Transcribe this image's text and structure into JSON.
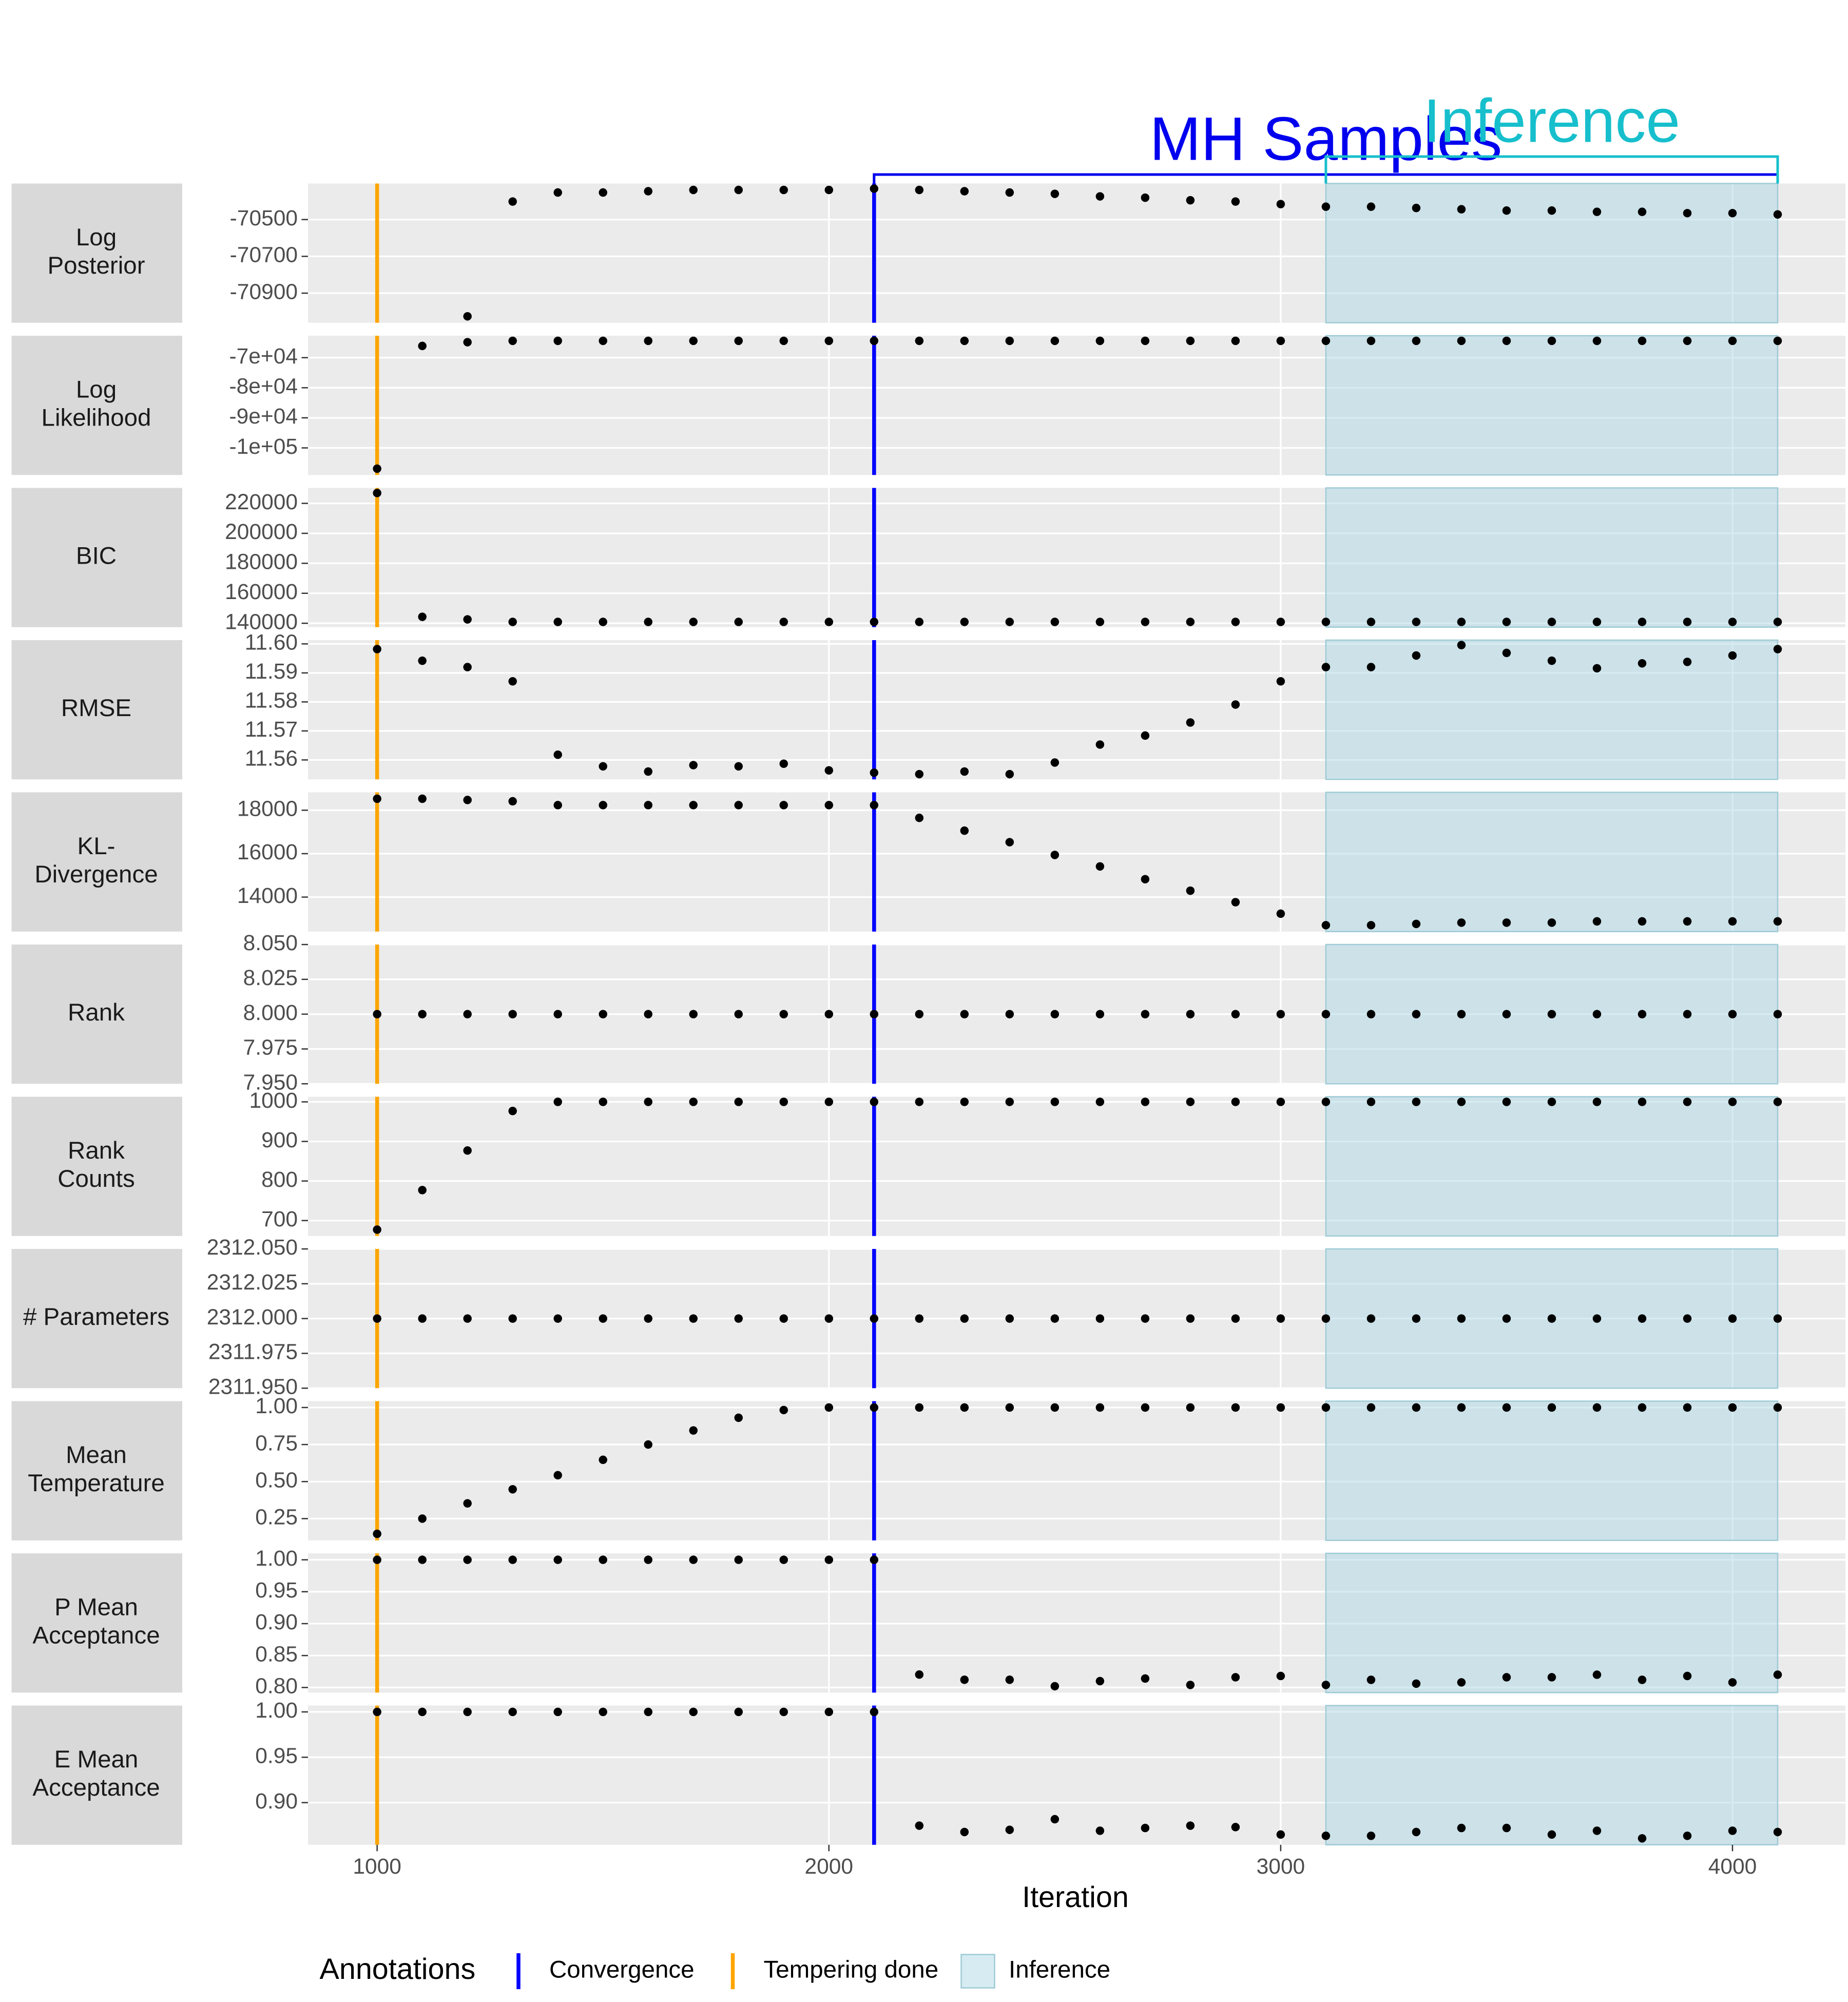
{
  "chart_data": {
    "type": "scatter",
    "xlabel": "Iteration",
    "xlim": [
      847,
      4250
    ],
    "xticks": [
      1000,
      2000,
      3000,
      4000
    ],
    "x": [
      1000,
      1100,
      1200,
      1300,
      1400,
      1500,
      1600,
      1700,
      1800,
      1900,
      2000,
      2100,
      2200,
      2300,
      2400,
      2500,
      2600,
      2700,
      2800,
      2900,
      3000,
      3100,
      3200,
      3300,
      3400,
      3500,
      3600,
      3700,
      3800,
      3900,
      4000,
      4100
    ],
    "panels": [
      {
        "strip": [
          "Log",
          "Posterior"
        ],
        "ylim": [
          -71061,
          -70304
        ],
        "yticks": [
          -70500,
          -70700,
          -70900
        ],
        "values": [
          null,
          null,
          -71026,
          -70402,
          -70353,
          -70353,
          -70346,
          -70339,
          -70339,
          -70339,
          -70339,
          -70332,
          -70339,
          -70346,
          -70353,
          -70360,
          -70374,
          -70381,
          -70395,
          -70402,
          -70416,
          -70430,
          -70430,
          -70437,
          -70444,
          -70451,
          -70451,
          -70458,
          -70458,
          -70465,
          -70465,
          -70472
        ]
      },
      {
        "strip": [
          "Log",
          "Likelihood"
        ],
        "ylim": [
          -109000,
          -62700
        ],
        "yticks": [
          {
            "value": -70000,
            "label": "-7e+04"
          },
          {
            "value": -80000,
            "label": "-8e+04"
          },
          {
            "value": -90000,
            "label": "-9e+04"
          },
          {
            "value": -100000,
            "label": "-1e+05"
          }
        ],
        "values": [
          -106900,
          -66100,
          -64850,
          -64400,
          -64400,
          -64400,
          -64400,
          -64400,
          -64400,
          -64400,
          -64400,
          -64400,
          -64400,
          -64400,
          -64400,
          -64400,
          -64400,
          -64400,
          -64400,
          -64400,
          -64400,
          -64400,
          -64400,
          -64400,
          -64400,
          -64400,
          -64400,
          -64400,
          -64400,
          -64400,
          -64400,
          -64400
        ]
      },
      {
        "strip": [
          "BIC"
        ],
        "ylim": [
          137400,
          230300
        ],
        "yticks": [
          220000,
          200000,
          180000,
          160000,
          140000
        ],
        "values": [
          226900,
          144300,
          142600,
          140900,
          140900,
          140900,
          140900,
          140900,
          140900,
          140900,
          140900,
          140900,
          140900,
          140900,
          140900,
          140900,
          140900,
          140900,
          140900,
          140900,
          140900,
          140900,
          140900,
          140900,
          140900,
          140900,
          140900,
          140900,
          140900,
          140900,
          140900,
          140900
        ]
      },
      {
        "strip": [
          "RMSE"
        ],
        "ylim": [
          11.5533,
          11.6013
        ],
        "yticks": [
          {
            "value": 11.6,
            "label": "11.60"
          },
          11.59,
          11.58,
          11.57,
          11.56
        ],
        "values": [
          11.5982,
          11.5942,
          11.592,
          11.5871,
          11.5618,
          11.5578,
          11.556,
          11.5582,
          11.5578,
          11.5587,
          11.5564,
          11.5556,
          11.5551,
          11.556,
          11.5551,
          11.5591,
          11.5653,
          11.5684,
          11.5729,
          11.5791,
          11.5871,
          11.592,
          11.592,
          11.596,
          11.5996,
          11.5969,
          11.5942,
          11.5916,
          11.5933,
          11.5938,
          11.596,
          11.5982
        ]
      },
      {
        "strip": [
          "KL-",
          "Divergence"
        ],
        "ylim": [
          12412,
          18824
        ],
        "yticks": [
          18000,
          16000,
          14000
        ],
        "values": [
          18529,
          18529,
          18471,
          18412,
          18235,
          18235,
          18235,
          18235,
          18235,
          18235,
          18235,
          18235,
          17647,
          17059,
          16529,
          15941,
          15412,
          14824,
          14294,
          13765,
          13235,
          12706,
          12706,
          12765,
          12824,
          12824,
          12824,
          12882,
          12882,
          12882,
          12882,
          12882
        ]
      },
      {
        "strip": [
          "Rank"
        ],
        "ylim": [
          7.95,
          8.05
        ],
        "yticks": [
          {
            "value": 8.05,
            "label": "8.050"
          },
          8.025,
          {
            "value": 8,
            "label": "8.000"
          },
          7.975,
          {
            "value": 7.95,
            "label": "7.950"
          }
        ],
        "values": [
          8,
          8,
          8,
          8,
          8,
          8,
          8,
          8,
          8,
          8,
          8,
          8,
          8,
          8,
          8,
          8,
          8,
          8,
          8,
          8,
          8,
          8,
          8,
          8,
          8,
          8,
          8,
          8,
          8,
          8,
          8,
          8
        ]
      },
      {
        "strip": [
          "Rank",
          "Counts"
        ],
        "ylim": [
          661,
          1013
        ],
        "yticks": [
          1000,
          900,
          800,
          700
        ],
        "values": [
          677,
          777,
          877,
          977,
          1000,
          1000,
          1000,
          1000,
          1000,
          1000,
          1000,
          1000,
          1000,
          1000,
          1000,
          1000,
          1000,
          1000,
          1000,
          1000,
          1000,
          1000,
          1000,
          1000,
          1000,
          1000,
          1000,
          1000,
          1000,
          1000,
          1000,
          1000
        ]
      },
      {
        "strip": [
          "# Parameters"
        ],
        "ylim": [
          2311.95,
          2312.05
        ],
        "yticks": [
          {
            "value": 2312.05,
            "label": "2312.050"
          },
          2312.025,
          {
            "value": 2312,
            "label": "2312.000"
          },
          2311.975,
          {
            "value": 2311.95,
            "label": "2311.950"
          }
        ],
        "values": [
          2312,
          2312,
          2312,
          2312,
          2312,
          2312,
          2312,
          2312,
          2312,
          2312,
          2312,
          2312,
          2312,
          2312,
          2312,
          2312,
          2312,
          2312,
          2312,
          2312,
          2312,
          2312,
          2312,
          2312,
          2312,
          2312,
          2312,
          2312,
          2312,
          2312,
          2312,
          2312
        ]
      },
      {
        "strip": [
          "Mean",
          "Temperature"
        ],
        "ylim": [
          0.103,
          1.043
        ],
        "yticks": [
          {
            "value": 1,
            "label": "1.00"
          },
          0.75,
          {
            "value": 0.5,
            "label": "0.50"
          },
          0.25
        ],
        "values": [
          0.147,
          0.25,
          0.353,
          0.448,
          0.543,
          0.647,
          0.75,
          0.845,
          0.931,
          0.983,
          1,
          1,
          1,
          1,
          1,
          1,
          1,
          1,
          1,
          1,
          1,
          1,
          1,
          1,
          1,
          1,
          1,
          1,
          1,
          1,
          1,
          1
        ]
      },
      {
        "strip": [
          "P Mean",
          "Acceptance"
        ],
        "ylim": [
          0.792,
          1.0101
        ],
        "yticks": [
          {
            "value": 1,
            "label": "1.00"
          },
          0.95,
          {
            "value": 0.9,
            "label": "0.90"
          },
          0.85,
          {
            "value": 0.8,
            "label": "0.80"
          }
        ],
        "values": [
          1,
          1,
          1,
          1,
          1,
          1,
          1,
          1,
          1,
          1,
          1,
          1,
          0.8202,
          0.8121,
          0.8121,
          0.802,
          0.81,
          0.814,
          0.804,
          0.816,
          0.818,
          0.804,
          0.812,
          0.806,
          0.808,
          0.816,
          0.816,
          0.82,
          0.812,
          0.818,
          0.808,
          0.82
        ]
      },
      {
        "strip": [
          "E Mean",
          "Acceptance"
        ],
        "ylim": [
          0.8535,
          1.007
        ],
        "yticks": [
          {
            "value": 1,
            "label": "1.00"
          },
          0.95,
          {
            "value": 0.9,
            "label": "0.90"
          }
        ],
        "values": [
          1,
          1,
          1,
          1,
          1,
          1,
          1,
          1,
          1,
          1,
          1,
          1,
          0.8746,
          0.8676,
          0.87,
          0.8817,
          0.869,
          0.872,
          0.8746,
          0.873,
          0.8648,
          0.8634,
          0.8634,
          0.8676,
          0.872,
          0.872,
          0.8648,
          0.869,
          0.8606,
          0.8634,
          0.869,
          0.8676
        ]
      }
    ],
    "convergence": {
      "x": 2100,
      "color": "#0000ff"
    },
    "tempering": {
      "x": 1000,
      "color": "#ffa500"
    },
    "inference": {
      "range": [
        3100,
        4100
      ],
      "color": "#add8e6"
    },
    "brackets": [
      {
        "label": "MH Samples",
        "range": [
          2100,
          4100
        ],
        "color": "#0000ee"
      },
      {
        "label": "Inference",
        "range": [
          3100,
          4100
        ],
        "color": "#17bfcc"
      }
    ],
    "legend": {
      "title": "Annotations",
      "entries": [
        "Convergence",
        "Tempering done",
        "Inference"
      ]
    }
  }
}
